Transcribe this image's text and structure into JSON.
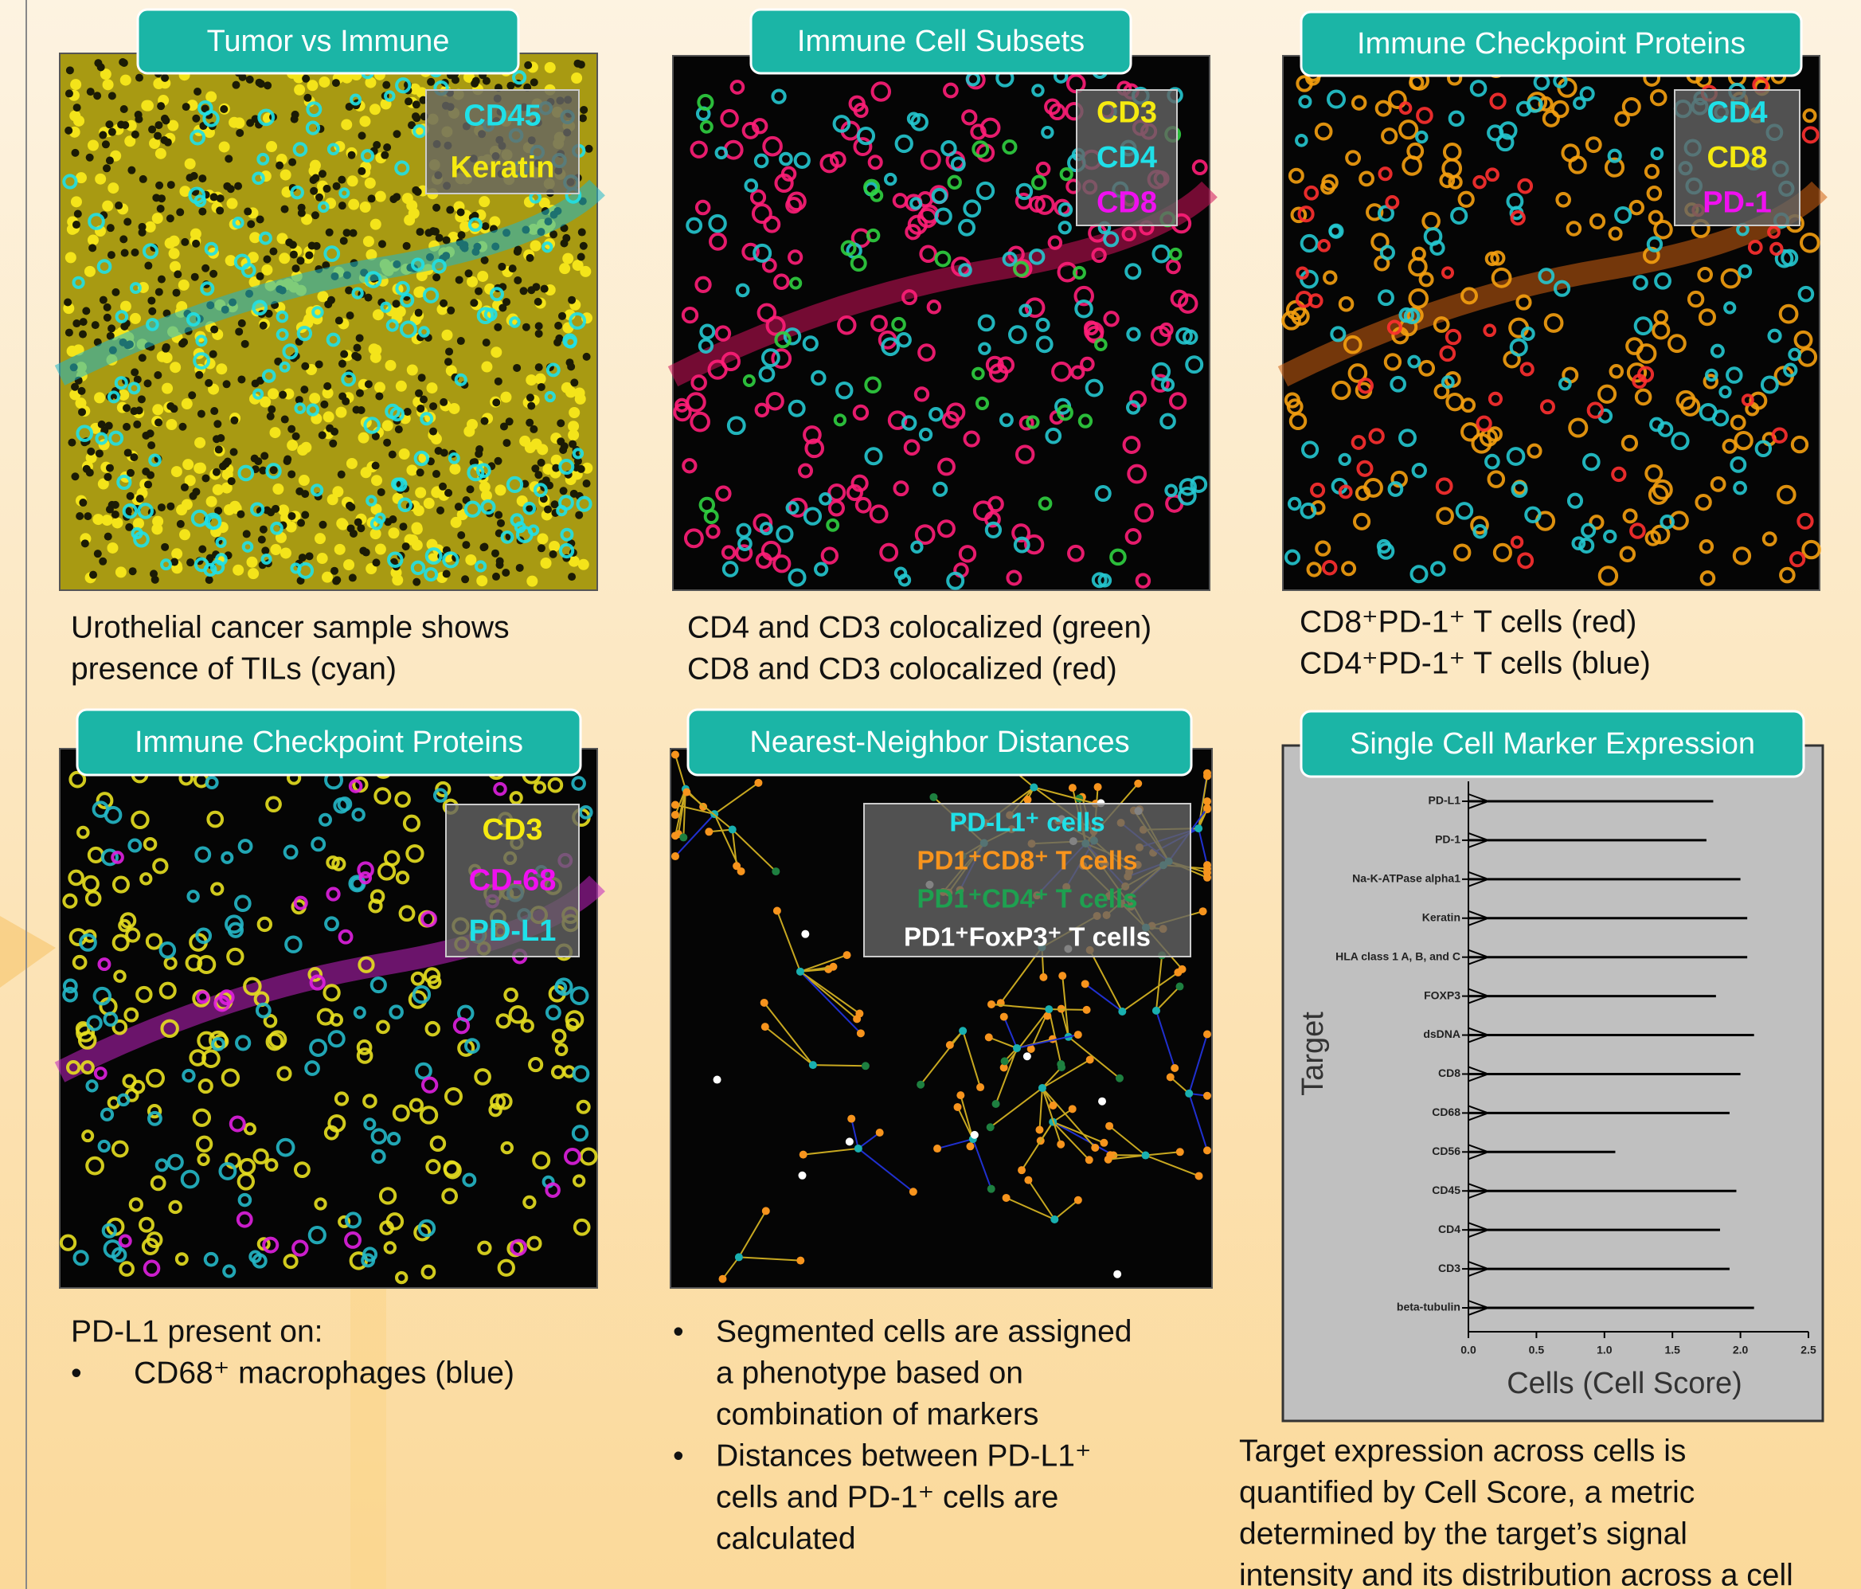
{
  "panels": [
    {
      "title": "Tumor vs Immune",
      "legend": [
        {
          "text": "CD45",
          "color": "#1fe0e8"
        },
        {
          "text": "Keratin",
          "color": "#f5ea10"
        }
      ],
      "caption": [
        "Urothelial cancer sample shows",
        "presence of TILs (cyan)"
      ]
    },
    {
      "title": "Immune Cell Subsets",
      "legend": [
        {
          "text": "CD3",
          "color": "#f5ea10"
        },
        {
          "text": "CD4",
          "color": "#1fe0e8"
        },
        {
          "text": "CD8",
          "color": "#f010f0"
        }
      ],
      "caption": [
        "CD4 and CD3 colocalized (green)",
        "CD8 and CD3 colocalized (red)"
      ]
    },
    {
      "title": "Immune Checkpoint Proteins",
      "legend": [
        {
          "text": "CD4",
          "color": "#1fe0e8"
        },
        {
          "text": "CD8",
          "color": "#f5ea10"
        },
        {
          "text": "PD-1",
          "color": "#f010f0"
        }
      ],
      "caption": [
        "CD8⁺PD-1⁺ T cells (red)",
        "CD4⁺PD-1⁺ T cells (blue)"
      ]
    },
    {
      "title": "Immune Checkpoint Proteins",
      "legend": [
        {
          "text": "CD3",
          "color": "#f5ea10"
        },
        {
          "text": "CD-68",
          "color": "#f010f0"
        },
        {
          "text": "PD-L1",
          "color": "#1fe0e8"
        }
      ],
      "caption": [
        "PD-L1 present on:"
      ],
      "bullets": [
        [
          "CD68⁺ macrophages (blue)"
        ]
      ]
    },
    {
      "title": "Nearest-Neighbor Distances",
      "legend": [
        {
          "text": "PD-L1⁺ cells",
          "color": "#1fe0e8"
        },
        {
          "text": "PD1⁺CD8⁺ T cells",
          "color": "#f7941d"
        },
        {
          "text": "PD1⁺CD4⁺ T cells",
          "color": "#1ea050"
        },
        {
          "text": "PD1⁺FoxP3⁺ T cells",
          "color": "#ffffff"
        }
      ],
      "bullets": [
        [
          "Segmented cells are assigned",
          "a phenotype based on",
          "combination of markers"
        ],
        [
          "Distances between PD-L1⁺",
          "cells and PD-1⁺ cells are",
          "calculated"
        ]
      ]
    },
    {
      "caption": [
        "Target expression across cells is",
        "quantified by Cell Score, a metric",
        "determined by the target’s signal",
        "intensity and its distribution across a cell"
      ]
    }
  ],
  "chart_data": {
    "type": "violin",
    "title": "Single Cell Marker Expression",
    "categories": [
      "PD-L1",
      "PD-1",
      "Na-K-ATPase alpha1",
      "Keratin",
      "HLA class 1 A, B, and C",
      "FOXP3",
      "dsDNA",
      "CD8",
      "CD68",
      "CD56",
      "CD45",
      "CD4",
      "CD3",
      "beta-tubulin"
    ],
    "values": [
      1.8,
      1.75,
      2.0,
      2.05,
      2.05,
      1.82,
      2.1,
      2.0,
      1.92,
      1.08,
      1.97,
      1.85,
      1.92,
      2.1
    ],
    "color": "#000000",
    "xlim": [
      0,
      2.5
    ],
    "xticks": [
      {
        "value": 0,
        "label": "0.0"
      },
      0.5,
      {
        "value": 1,
        "label": "1.0"
      },
      1.5,
      {
        "value": 2,
        "label": "2.0"
      },
      2.5
    ],
    "xlabel": "Cells (Cell Score)",
    "ylabel": "Target"
  }
}
